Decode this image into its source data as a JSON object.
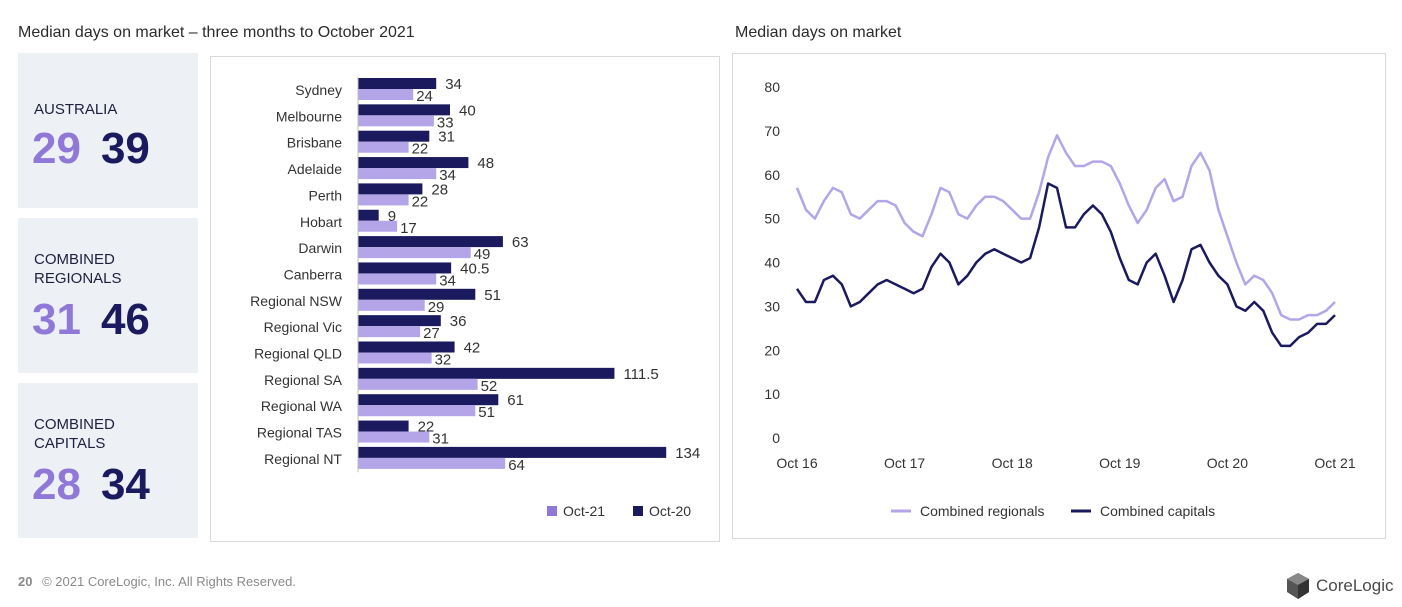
{
  "left_title": "Median days on market – three months to October 2021",
  "right_title": "Median days on market",
  "stats": [
    {
      "label": "AUSTRALIA",
      "v1": "29",
      "v2": "39"
    },
    {
      "label": "COMBINED REGIONALS",
      "v1": "31",
      "v2": "46"
    },
    {
      "label": "COMBINED CAPITALS",
      "v1": "28",
      "v2": "34"
    }
  ],
  "footer": {
    "page": "20",
    "text": "© 2021 CoreLogic, Inc. All Rights Reserved.",
    "brand": "CoreLogic"
  },
  "colors": {
    "light": "#b3a5e8",
    "dark": "#1b1a5e",
    "accent": "#8f78d8"
  },
  "chart_data": [
    {
      "type": "bar",
      "orientation": "horizontal",
      "categories": [
        "Sydney",
        "Melbourne",
        "Brisbane",
        "Adelaide",
        "Perth",
        "Hobart",
        "Darwin",
        "Canberra",
        "Regional NSW",
        "Regional Vic",
        "Regional QLD",
        "Regional SA",
        "Regional WA",
        "Regional TAS",
        "Regional NT"
      ],
      "series": [
        {
          "name": "Oct-20",
          "labels": [
            "34",
            "40",
            "31",
            "48",
            "28",
            "9",
            "63",
            "40.5",
            "51",
            "36",
            "42",
            "111.5",
            "61",
            "22",
            "134"
          ],
          "values": [
            34,
            40,
            31,
            48,
            28,
            9,
            63,
            40.5,
            51,
            36,
            42,
            111.5,
            61,
            22,
            134
          ]
        },
        {
          "name": "Oct-21",
          "labels": [
            "24",
            "33",
            "22",
            "34",
            "22",
            "17",
            "49",
            "34",
            "29",
            "27",
            "32",
            "52",
            "51",
            "31",
            "64"
          ],
          "values": [
            24,
            33,
            22,
            34,
            22,
            17,
            49,
            34,
            29,
            27,
            32,
            52,
            51,
            31,
            64
          ]
        }
      ],
      "legend": [
        "Oct-21",
        "Oct-20"
      ],
      "legend_position": "bottom-right"
    },
    {
      "type": "line",
      "x_ticks": [
        "Oct 16",
        "Oct 17",
        "Oct 18",
        "Oct 19",
        "Oct 20",
        "Oct 21"
      ],
      "y_ticks": [
        "80",
        "70",
        "60",
        "50",
        "40",
        "30",
        "20",
        "10",
        "0"
      ],
      "ylim": [
        0,
        80
      ],
      "series": [
        {
          "name": "Combined regionals",
          "values": [
            57,
            52,
            50,
            54,
            57,
            56,
            51,
            50,
            52,
            54,
            54,
            53,
            49,
            47,
            46,
            51,
            57,
            56,
            51,
            50,
            53,
            55,
            55,
            54,
            52,
            50,
            50,
            56,
            64,
            69,
            65,
            62,
            62,
            63,
            63,
            62,
            58,
            53,
            49,
            52,
            57,
            59,
            54,
            55,
            62,
            65,
            61,
            52,
            46,
            40,
            35,
            37,
            36,
            33,
            28,
            27,
            27,
            28,
            28,
            29,
            31
          ]
        },
        {
          "name": "Combined capitals",
          "values": [
            34,
            31,
            31,
            36,
            37,
            35,
            30,
            31,
            33,
            35,
            36,
            35,
            34,
            33,
            34,
            39,
            42,
            40,
            35,
            37,
            40,
            42,
            43,
            42,
            41,
            40,
            41,
            48,
            58,
            57,
            48,
            48,
            51,
            53,
            51,
            47,
            41,
            36,
            35,
            40,
            42,
            37,
            31,
            36,
            43,
            44,
            40,
            37,
            35,
            30,
            29,
            31,
            29,
            24,
            21,
            21,
            23,
            24,
            26,
            26,
            28
          ]
        }
      ],
      "legend": [
        "Combined regionals",
        "Combined capitals"
      ],
      "legend_position": "bottom"
    }
  ]
}
